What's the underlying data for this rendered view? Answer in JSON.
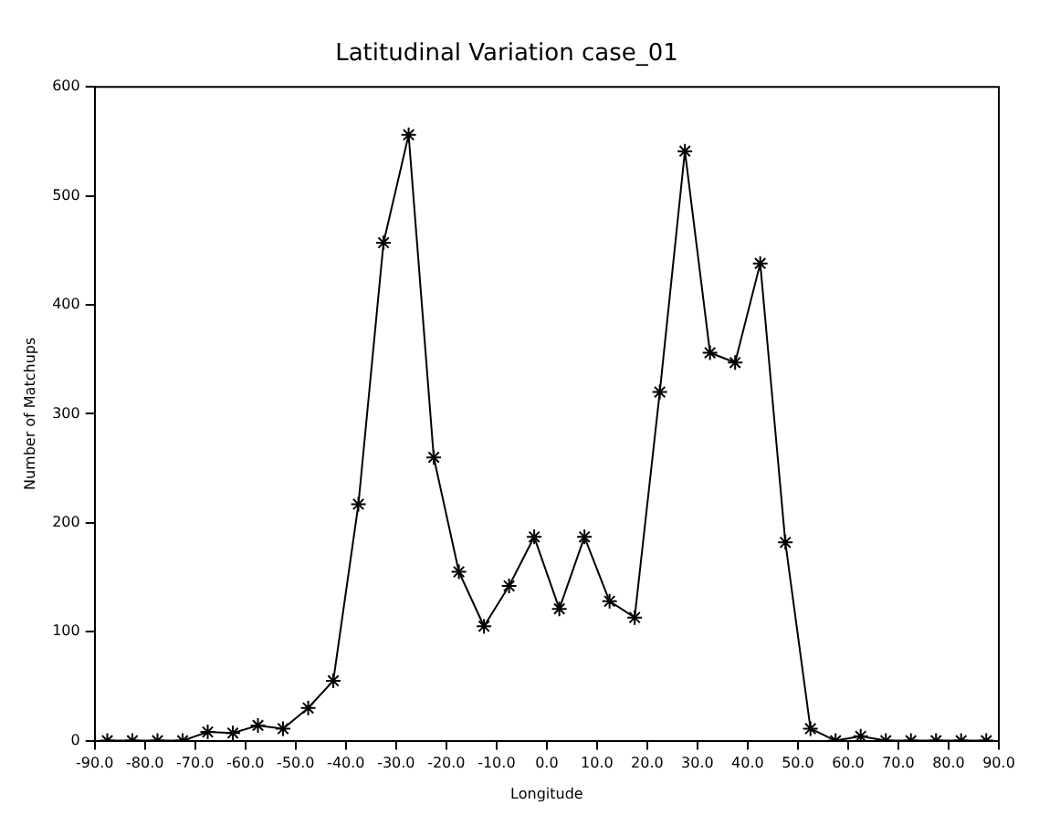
{
  "chart_data": {
    "type": "line",
    "title": "Latitudinal Variation case_01",
    "xlabel": "Longitude",
    "ylabel": "Number of Matchups",
    "x": [
      -87.5,
      -82.5,
      -77.5,
      -72.5,
      -67.5,
      -62.5,
      -57.5,
      -52.5,
      -47.5,
      -42.5,
      -37.5,
      -32.5,
      -27.5,
      -22.5,
      -17.5,
      -12.5,
      -7.5,
      -2.5,
      2.5,
      7.5,
      12.5,
      17.5,
      22.5,
      27.5,
      32.5,
      37.5,
      42.5,
      47.5,
      52.5,
      57.5,
      62.5,
      67.5,
      72.5,
      77.5,
      82.5,
      87.5
    ],
    "series": [
      {
        "color": "#000000",
        "values": [
          0,
          0,
          0,
          0,
          8,
          7,
          14,
          11,
          30,
          55,
          217,
          457,
          556,
          260,
          155,
          105,
          142,
          187,
          121,
          187,
          128,
          113,
          320,
          541,
          356,
          347,
          438,
          182,
          11,
          0,
          4,
          0,
          0,
          0,
          0,
          0
        ]
      }
    ],
    "xlim": [
      -90,
      90
    ],
    "xticks": [
      {
        "value": -90,
        "label": "-90.0"
      },
      {
        "value": -80,
        "label": "-80.0"
      },
      {
        "value": -70,
        "label": "-70.0"
      },
      {
        "value": -60,
        "label": "-60.0"
      },
      {
        "value": -50,
        "label": "-50.0"
      },
      {
        "value": -40,
        "label": "-40.0"
      },
      {
        "value": -30,
        "label": "-30.0"
      },
      {
        "value": -20,
        "label": "-20.0"
      },
      {
        "value": -10,
        "label": "-10.0"
      },
      {
        "value": 0,
        "label": "0.0"
      },
      {
        "value": 10,
        "label": "10.0"
      },
      {
        "value": 20,
        "label": "20.0"
      },
      {
        "value": 30,
        "label": "30.0"
      },
      {
        "value": 40,
        "label": "40.0"
      },
      {
        "value": 50,
        "label": "50.0"
      },
      {
        "value": 60,
        "label": "60.0"
      },
      {
        "value": 70,
        "label": "70.0"
      },
      {
        "value": 80,
        "label": "80.0"
      },
      {
        "value": 90,
        "label": "90.0"
      }
    ],
    "ylim": [
      0,
      600
    ],
    "yticks": [
      0,
      100,
      200,
      300,
      400,
      500,
      600
    ],
    "grid": false,
    "legend": false,
    "marker": "cross",
    "line_style": "solid"
  }
}
